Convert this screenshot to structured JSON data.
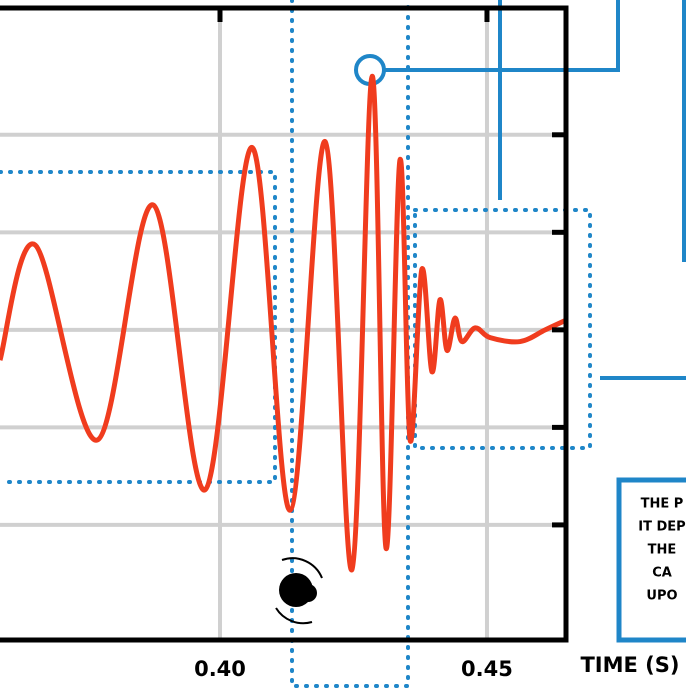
{
  "chart_data": {
    "type": "line",
    "x_label": "TIME (S)",
    "x": [
      0.3588,
      0.3654,
      0.377,
      0.3875,
      0.3972,
      0.406,
      0.4131,
      0.4197,
      0.4247,
      0.4285,
      0.4311,
      0.4337,
      0.4356,
      0.4378,
      0.4397,
      0.4412,
      0.4425,
      0.444,
      0.4453,
      0.4478,
      0.4506,
      0.4562,
      0.4609,
      0.4648
    ],
    "values": [
      -0.31,
      0.87,
      -1.13,
      1.28,
      -1.64,
      1.87,
      -1.85,
      1.93,
      -2.46,
      2.6,
      -2.24,
      1.74,
      -1.13,
      0.62,
      -0.43,
      0.31,
      -0.21,
      0.12,
      -0.12,
      0.02,
      -0.08,
      -0.12,
      0.0,
      0.1
    ],
    "color": "#f03c1e",
    "xlim": [
      0.3588,
      0.4648
    ],
    "xticks": [
      {
        "value": 0.4,
        "label": "0.40"
      },
      {
        "value": 0.45,
        "label": "0.45"
      }
    ],
    "ylim": [
      -3.18,
      3.3
    ],
    "yticks": [
      -2,
      -1,
      0,
      1,
      2
    ],
    "grid": true
  },
  "note_box": {
    "lines": [
      "THE P",
      "IT DEP",
      "THE",
      "CA",
      "UPO"
    ]
  }
}
